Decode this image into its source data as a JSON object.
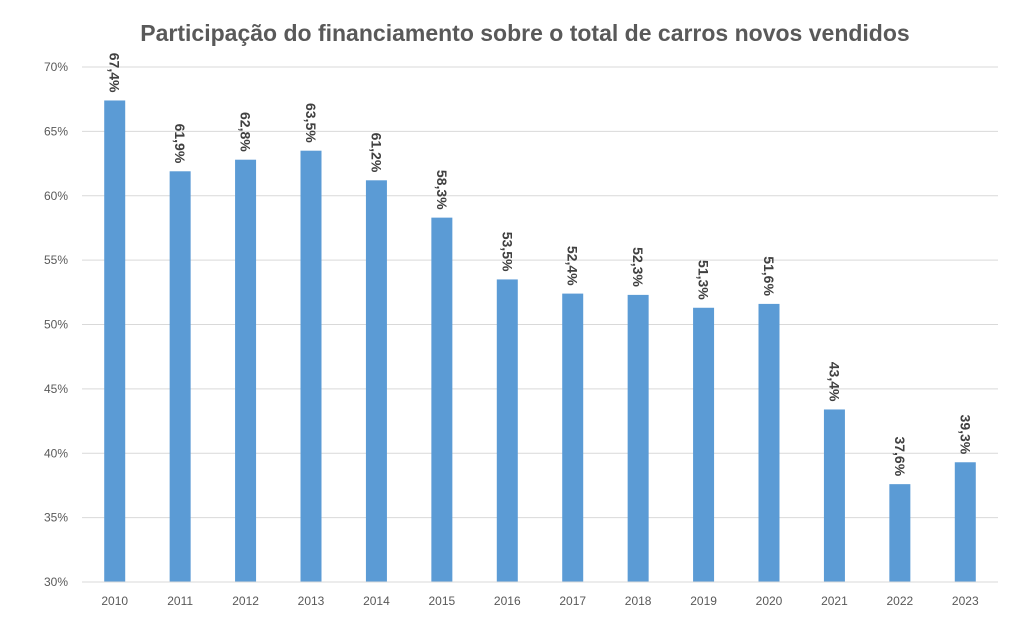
{
  "chart_data": {
    "type": "bar",
    "title": "Participação do financiamento sobre o total de carros novos vendidos",
    "categories": [
      "2010",
      "2011",
      "2012",
      "2013",
      "2014",
      "2015",
      "2016",
      "2017",
      "2018",
      "2019",
      "2020",
      "2021",
      "2022",
      "2023"
    ],
    "values": [
      67.4,
      61.9,
      62.8,
      63.5,
      61.2,
      58.3,
      53.5,
      52.4,
      52.3,
      51.3,
      51.6,
      43.4,
      37.6,
      39.3
    ],
    "data_labels": [
      "67,4%",
      "61,9%",
      "62,8%",
      "63,5%",
      "61,2%",
      "58,3%",
      "53,5%",
      "52,4%",
      "52,3%",
      "51,3%",
      "51,6%",
      "43,4%",
      "37,6%",
      "39,3%"
    ],
    "y_ticks": [
      30,
      35,
      40,
      45,
      50,
      55,
      60,
      65,
      70
    ],
    "y_tick_labels": [
      "30%",
      "35%",
      "40%",
      "45%",
      "50%",
      "55%",
      "60%",
      "65%",
      "70%"
    ],
    "ylim": [
      30,
      70
    ],
    "xlabel": "",
    "ylabel": "",
    "grid": true,
    "legend": "none",
    "bar_color": "#5B9BD5",
    "grid_color": "#D9D9D9"
  }
}
